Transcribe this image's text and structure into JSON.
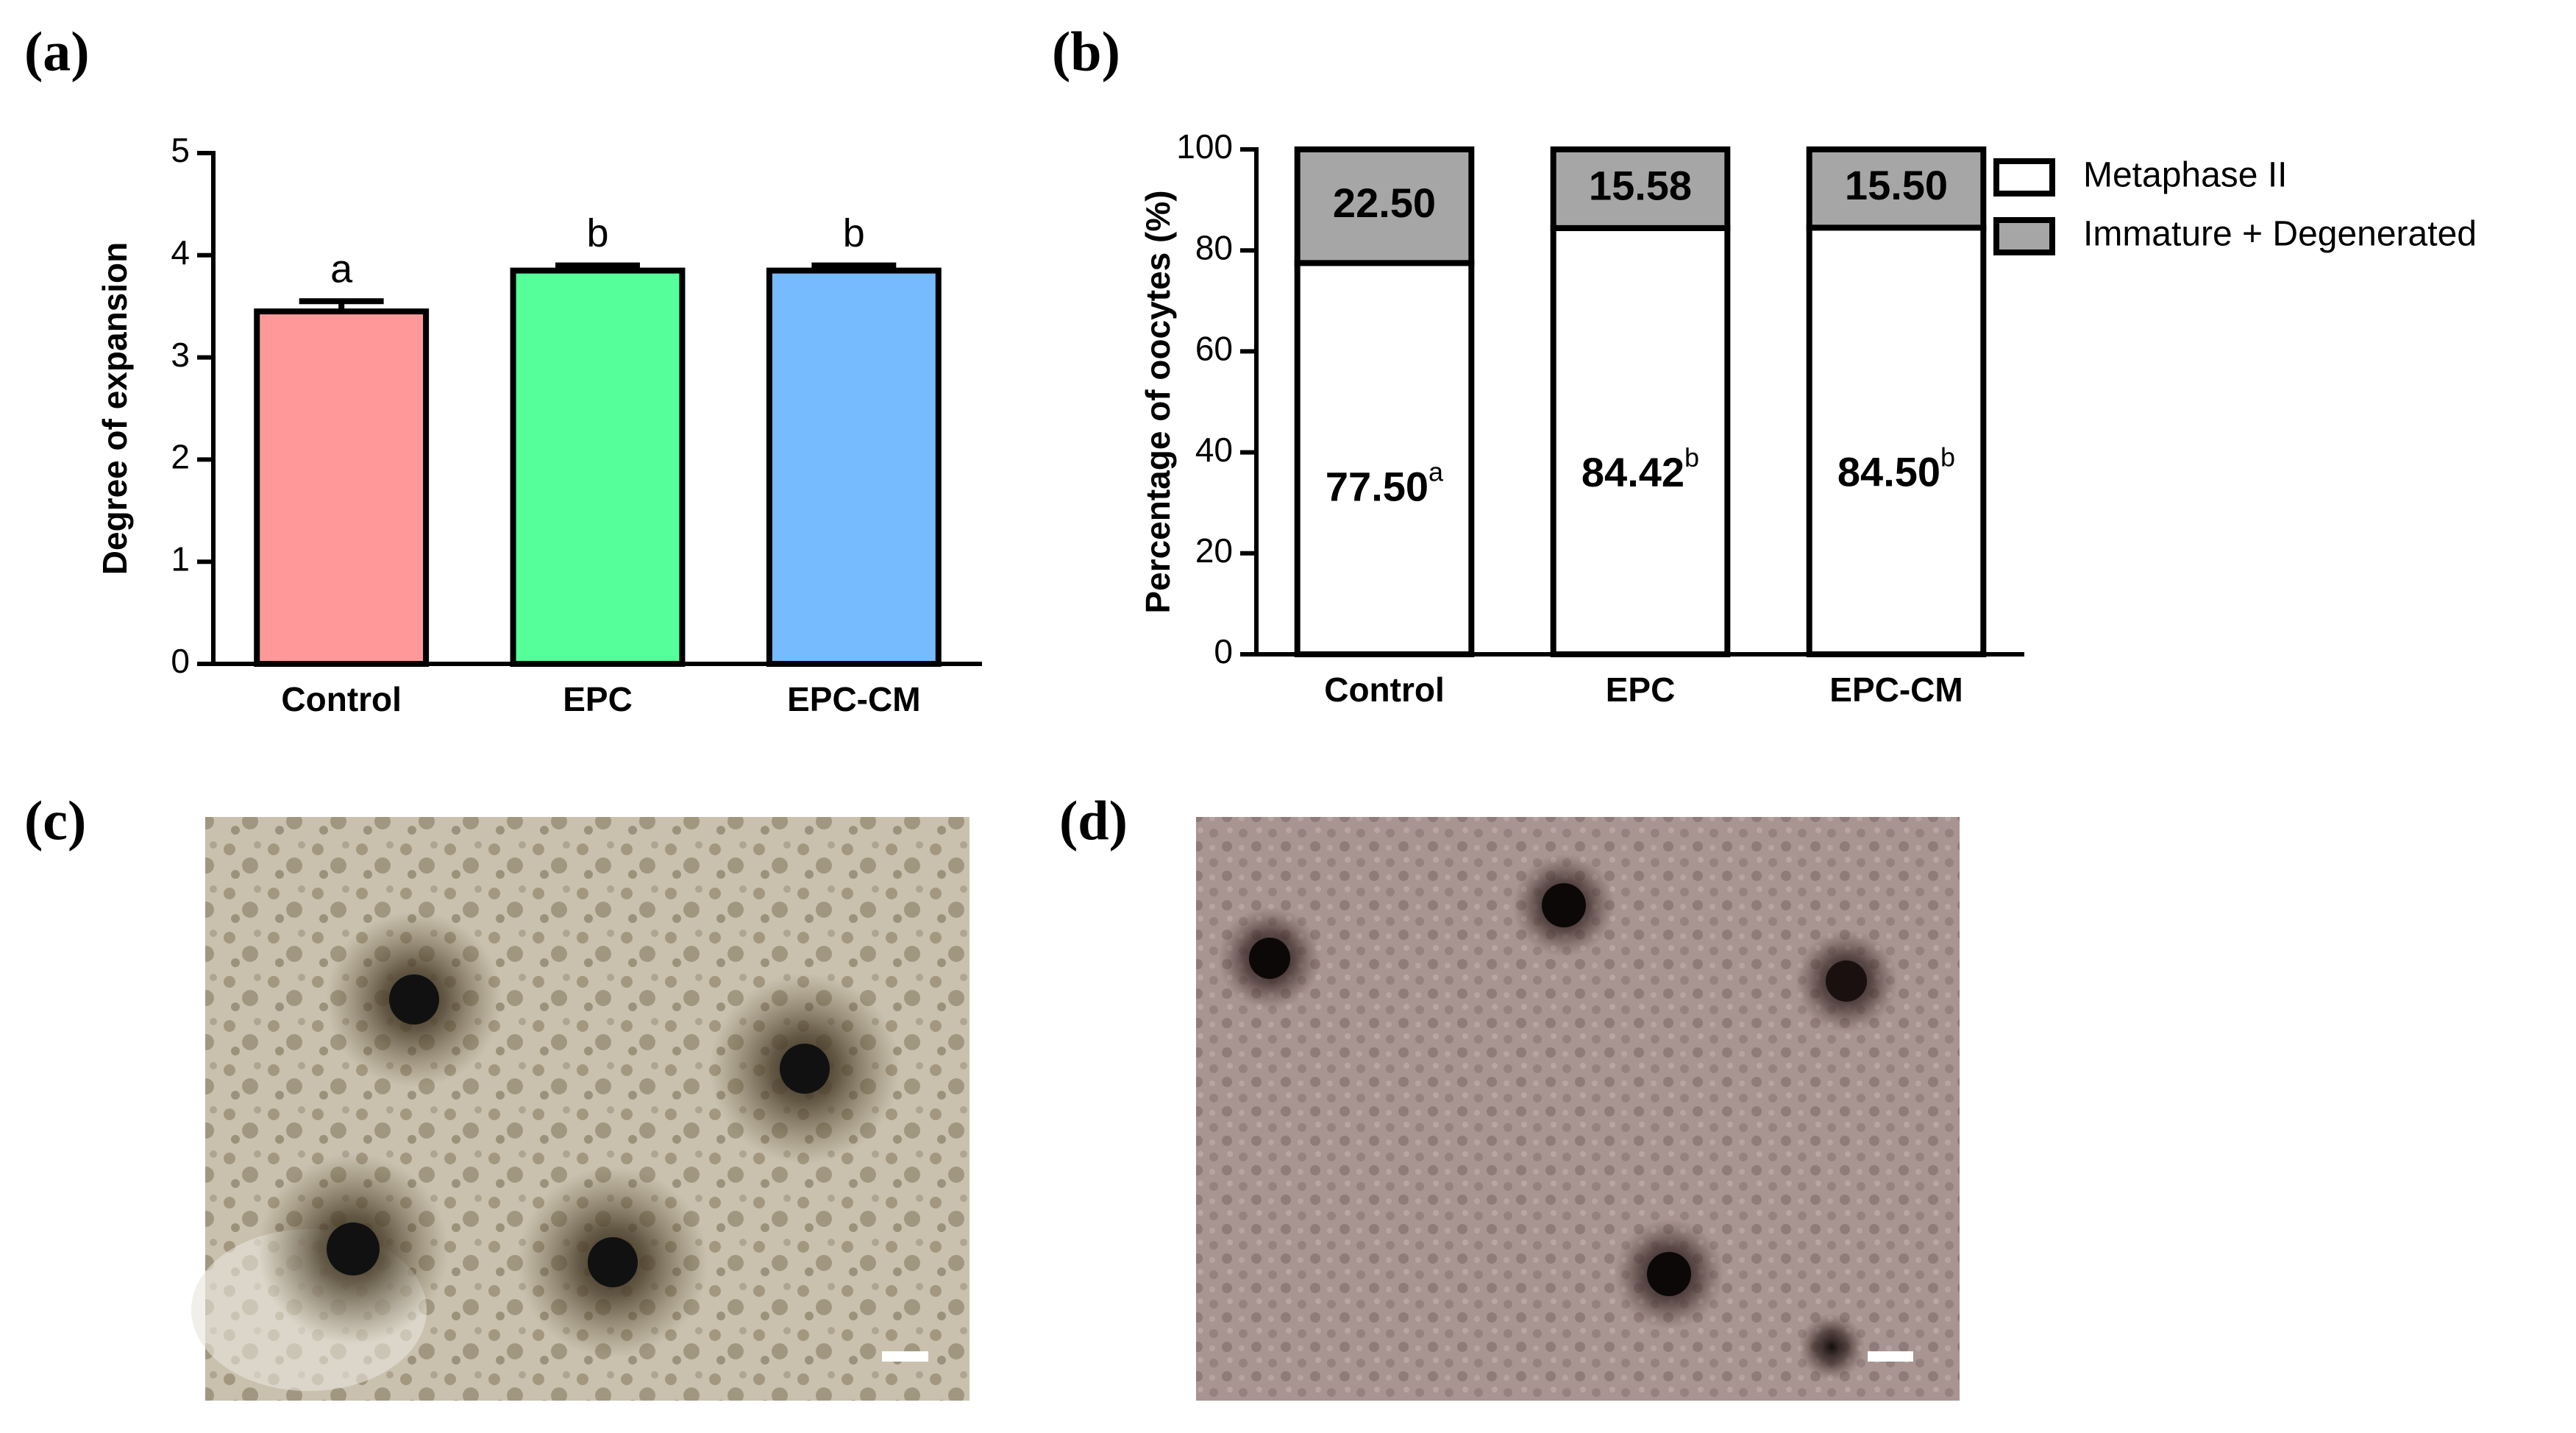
{
  "chart_data": [
    {
      "type": "bar",
      "panel_label": "(a)",
      "ylabel": "Degree of expansion",
      "categories": [
        "Control",
        "EPC",
        "EPC-CM"
      ],
      "values": [
        3.45,
        3.85,
        3.85
      ],
      "errors": [
        0.1,
        0.05,
        0.05
      ],
      "significance": [
        "a",
        "b",
        "b"
      ],
      "colors": [
        "#ff9999",
        "#55ff99",
        "#77bbff"
      ],
      "ylim": [
        0,
        5
      ],
      "yticks": [
        0,
        1,
        2,
        3,
        4,
        5
      ]
    },
    {
      "type": "stacked_bar",
      "panel_label": "(b)",
      "ylabel": "Percentage of oocytes (%)",
      "categories": [
        "Control",
        "EPC",
        "EPC-CM"
      ],
      "series": [
        {
          "name": "Metaphase II",
          "color": "#ffffff",
          "values": [
            77.5,
            84.42,
            84.5
          ],
          "value_labels": [
            "77.50",
            "84.42",
            "84.50"
          ],
          "superscripts": [
            "a",
            "b",
            "b"
          ]
        },
        {
          "name": "Immature + Degenerated",
          "color": "#a6a6a6",
          "values": [
            22.5,
            15.58,
            15.5
          ],
          "value_labels": [
            "22.50",
            "15.58",
            "15.50"
          ]
        }
      ],
      "ylim": [
        0,
        100
      ],
      "yticks": [
        0,
        20,
        40,
        60,
        80,
        100
      ],
      "legend": "right"
    }
  ],
  "images": [
    {
      "label": "(c)"
    },
    {
      "label": "(d)"
    }
  ]
}
